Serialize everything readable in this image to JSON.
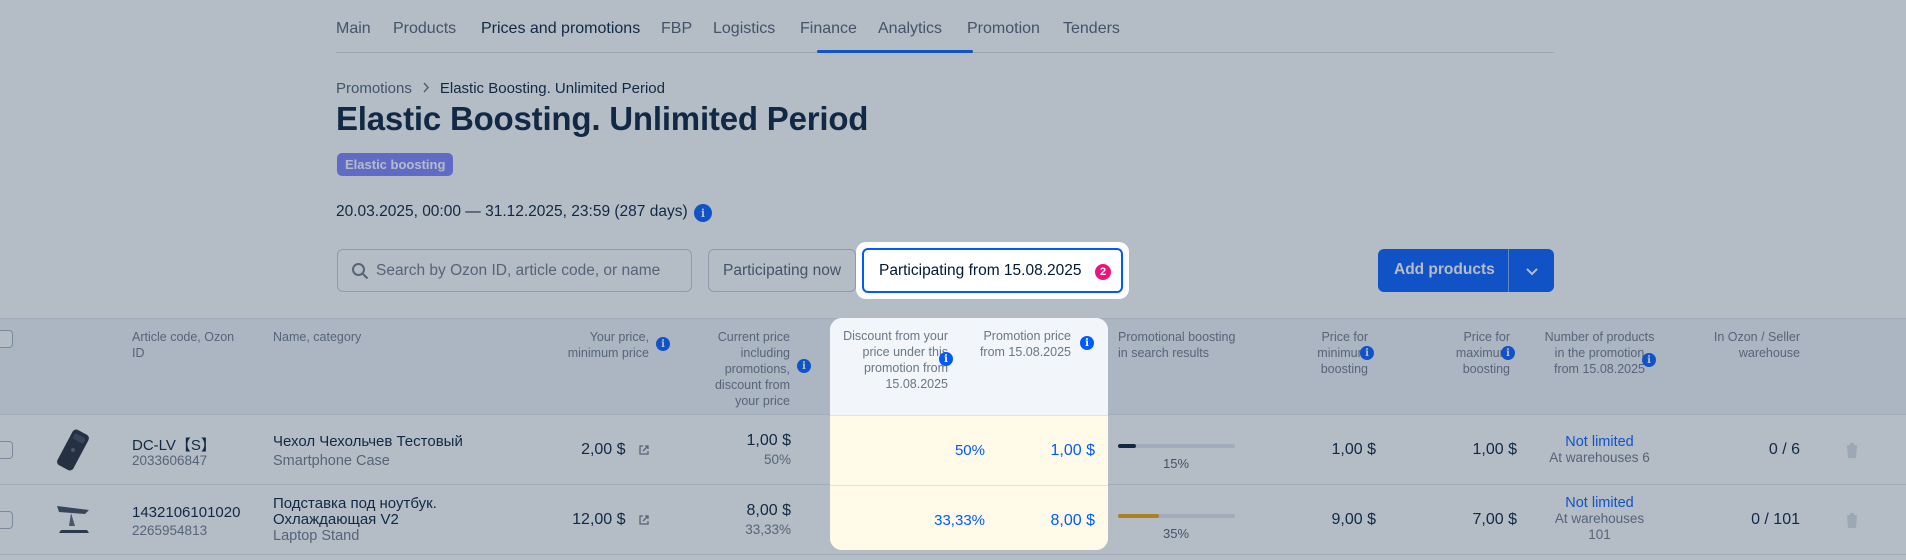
{
  "nav": {
    "tabs": [
      "Main",
      "Products",
      "Prices and promotions",
      "FBP",
      "Logistics",
      "Finance",
      "Analytics",
      "Promotion",
      "Tenders"
    ],
    "active": "Prices and promotions"
  },
  "breadcrumb": {
    "parent": "Promotions",
    "current": "Elastic Boosting. Unlimited Period"
  },
  "page_title": "Elastic Boosting. Unlimited Period",
  "badge": "Elastic boosting",
  "dates": "20.03.2025, 00:00 — 31.12.2025, 23:59 (287 days)",
  "search": {
    "placeholder": "Search by Ozon ID, article code, or name"
  },
  "filters": {
    "participating_now": "Participating now",
    "participating_from": "Participating from 15.08.2025",
    "participating_from_count": "2"
  },
  "add_products": "Add products",
  "columns": {
    "article": "Article code, Ozon ID",
    "name": "Name, category",
    "your_price": "Your price, minimum price",
    "current_price": "Current price including promotions, discount from your price",
    "discount": "Discount from your price under this promotion from 15.08.2025",
    "promo_price": "Promotion price from 15.08.2025",
    "boosting": "Promotional boosting in search results",
    "price_min": "Price for minimum boosting",
    "price_max": "Price for maximum boosting",
    "num_products": "Number of products in the promotion from 15.08.2025",
    "warehouse": "In Ozon / Seller warehouse"
  },
  "rows": [
    {
      "article": "DC-LV【S】",
      "ozon_id": "2033606847",
      "name_line1": "Чехол Чехольчев Тестовый",
      "name_line2": "",
      "category": "Smartphone Case",
      "your_price": "2,00 $",
      "current_price": "1,00 $",
      "current_discount": "50%",
      "discount": "50%",
      "promo_price": "1,00 $",
      "boost_pct": "15%",
      "boost_value": 0.15,
      "boost_color": "#001a34",
      "price_min": "1,00 $",
      "price_max": "1,00 $",
      "limit": "Not limited",
      "limit_sub": "At warehouses 6",
      "limit_sub2": "",
      "warehouse": "0 / 6"
    },
    {
      "article": "1432106101020",
      "ozon_id": "2265954813",
      "name_line1": "Подставка под ноутбук.",
      "name_line2": "Охлаждающая V2",
      "category": "Laptop Stand",
      "your_price": "12,00 $",
      "current_price": "8,00 $",
      "current_discount": "33,33%",
      "discount": "33,33%",
      "promo_price": "8,00 $",
      "boost_pct": "35%",
      "boost_value": 0.35,
      "boost_color": "#f1a000",
      "price_min": "9,00 $",
      "price_max": "7,00 $",
      "limit": "Not limited",
      "limit_sub": "At warehouses",
      "limit_sub2": "101",
      "warehouse": "0 / 101"
    }
  ],
  "colors": {
    "accent": "#005bff",
    "badge": "#7d7ffe",
    "count": "#f1117e",
    "highlight_cell": "#fffbe8"
  }
}
